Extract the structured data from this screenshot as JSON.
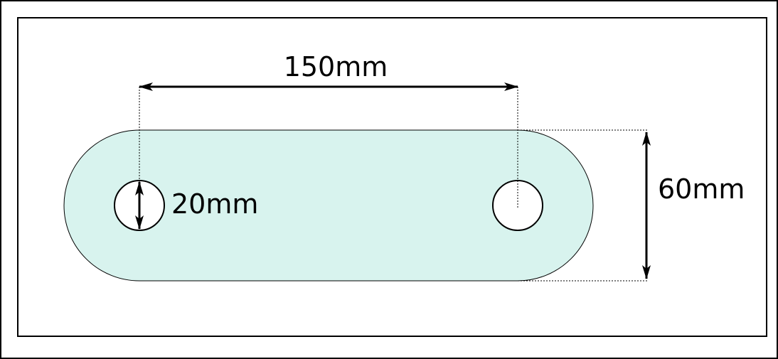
{
  "colors": {
    "plate_fill": "#d8f3ee",
    "stroke": "#000000",
    "hole_fill": "#ffffff",
    "background": "#ffffff"
  },
  "dimensions": {
    "center_distance": "150mm",
    "hole_diameter": "20mm",
    "plate_width": "60mm"
  }
}
